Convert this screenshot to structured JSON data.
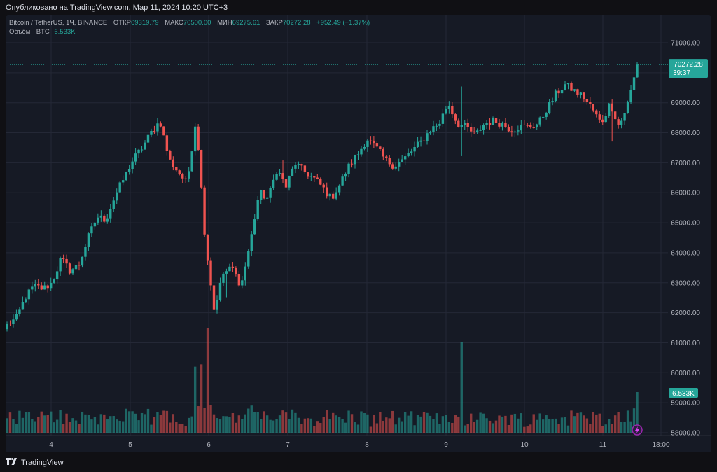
{
  "header": {
    "published": "Опубликовано на TradingView.com, Мар 11, 2024 10:20 UTC+3"
  },
  "legend": {
    "symbol": "Bitcoin / TetherUS, 1Ч, BINANCE",
    "open_label": "ОТКР",
    "open": "69319.79",
    "high_label": "МАКС",
    "high": "70500.00",
    "low_label": "МИН",
    "low": "69275.61",
    "close_label": "ЗАКР",
    "close": "70272.28",
    "change": "+952.49 (+1.37%)",
    "volume_label": "Объём · BTC",
    "volume": "6.533K"
  },
  "footer": {
    "brand": "TradingView"
  },
  "colors": {
    "up": "#26a69a",
    "down": "#ef5350",
    "background": "#161a25",
    "grid": "#242836"
  },
  "chart_data": {
    "type": "candlestick",
    "symbol": "BTCUSDT",
    "interval": "1h",
    "ylim": [
      57800,
      71300
    ],
    "y_ticks": [
      "71000.00",
      "70000.00",
      "69000.00",
      "68000.00",
      "67000.00",
      "66000.00",
      "65000.00",
      "64000.00",
      "63000.00",
      "62000.00",
      "61000.00",
      "60000.00",
      "59000.00",
      "58000.00"
    ],
    "x_ticks": [
      "4",
      "5",
      "6",
      "7",
      "8",
      "9",
      "10",
      "11",
      "18:00"
    ],
    "last_price": "70272.28",
    "countdown": "39:37",
    "volume_last": "6.533K",
    "close_path": [
      61600,
      61800,
      62500,
      62900,
      62800,
      63000,
      63800,
      63400,
      63600,
      64500,
      65200,
      65100,
      65900,
      66500,
      67100,
      67500,
      68000,
      68400,
      67100,
      66700,
      66300,
      68500,
      64500,
      62100,
      63300,
      63500,
      62900,
      64300,
      66000,
      65800,
      66800,
      66200,
      67000,
      66700,
      66500,
      66200,
      65800,
      66300,
      66900,
      67300,
      67800,
      67500,
      67100,
      66900,
      67100,
      67400,
      67700,
      68100,
      68300,
      69000,
      68300,
      68200,
      67900,
      68300,
      68400,
      68300,
      68100,
      68200,
      68200,
      68300,
      68800,
      69300,
      69600,
      69400,
      69200,
      68800,
      68300,
      69000,
      68200,
      69000,
      70272
    ],
    "volume_scale_btc_per_px": 60
  }
}
